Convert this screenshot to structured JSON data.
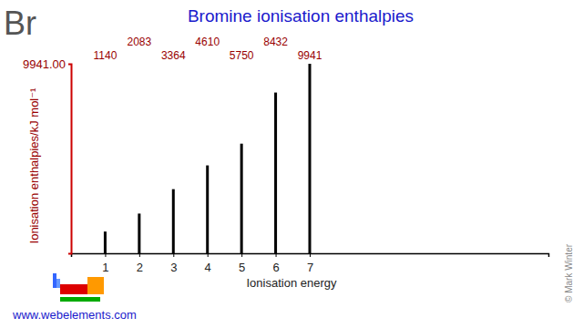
{
  "chart_data": {
    "type": "bar",
    "title": "Bromine ionisation enthalpies",
    "x_label": "Ionisation energy",
    "y_label": "Ionisation enthalpies/kJ mol⁻¹",
    "x": [
      1,
      2,
      3,
      4,
      5,
      6,
      7
    ],
    "values": [
      1140,
      2083,
      3364,
      4610,
      5750,
      8432,
      9941
    ],
    "color": "#000000",
    "xlim": [
      0,
      14
    ],
    "xticks": [
      1,
      2,
      3,
      4,
      5,
      6,
      7
    ],
    "ylim": [
      0,
      9941
    ],
    "yticks": [
      {
        "value": 9941,
        "label": "9941.00"
      }
    ],
    "grid": false,
    "data_labels": true,
    "annotations": [
      "Br",
      "www.webelements.com",
      "© Mark Winter"
    ]
  }
}
